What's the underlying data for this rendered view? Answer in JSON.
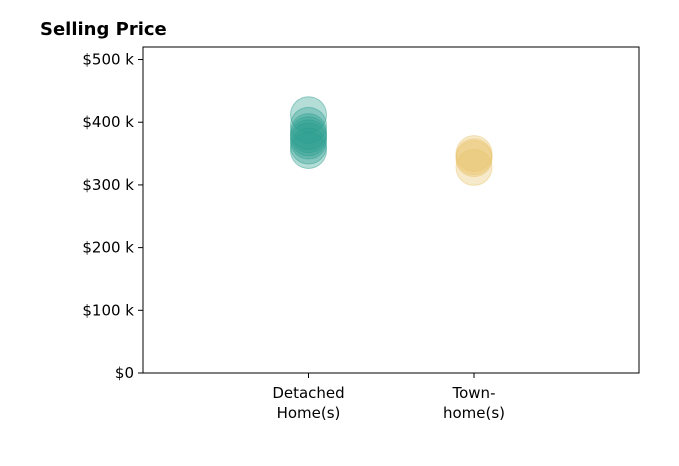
{
  "chart_data": {
    "type": "scatter",
    "title": "Selling Price",
    "xlabel": "",
    "ylabel": "",
    "categories": [
      [
        "Detached",
        "Home(s)"
      ],
      [
        "Town-",
        "home(s)"
      ]
    ],
    "ylim": [
      0,
      520000
    ],
    "yticks": [
      0,
      100000,
      200000,
      300000,
      400000,
      500000
    ],
    "ytick_labels": [
      "$0",
      "$100 k",
      "$200 k",
      "$300 k",
      "$400 k",
      "$500 k"
    ],
    "grid": false,
    "legend": "none",
    "series": [
      {
        "category": 0,
        "color": "#2a9d8f",
        "opacity": 0.35,
        "values": [
          412000,
          395000,
          385000,
          380000,
          375000,
          370000,
          362000,
          355000
        ]
      },
      {
        "category": 1,
        "color": "#e9c46a",
        "opacity": 0.35,
        "values": [
          350000,
          345000,
          342000,
          328000
        ]
      }
    ]
  }
}
